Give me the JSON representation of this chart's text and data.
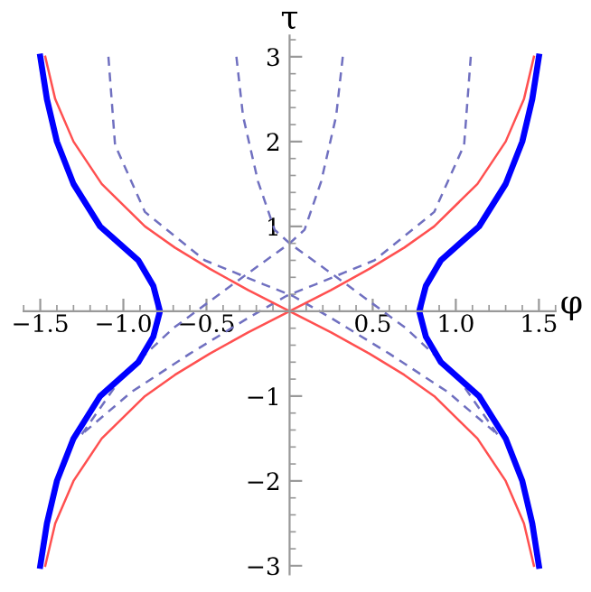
{
  "chart_data": {
    "type": "line",
    "xlabel": "φ",
    "ylabel": "τ",
    "grid": false,
    "legend": false,
    "xlim": [
      -1.6,
      1.6
    ],
    "ylim": [
      -3.1,
      3.25
    ],
    "xticks": [
      {
        "value": -1.5,
        "label": "−1.5"
      },
      {
        "value": -1.0,
        "label": "−1.0"
      },
      {
        "value": -0.5,
        "label": "−0.5"
      },
      0.5,
      {
        "value": 1.0,
        "label": "1.0"
      },
      1.5
    ],
    "yticks": [
      {
        "value": -3,
        "label": "−3"
      },
      {
        "value": -2,
        "label": "−2"
      },
      {
        "value": -1,
        "label": "−1"
      },
      1,
      2,
      3
    ],
    "series": [
      {
        "color": "#7070c0",
        "line_style": "dashed",
        "x": [
          1.09,
          1.05,
          0.87,
          0.51,
          0.16,
          -0.02,
          -0.25,
          -0.6,
          -0.95,
          -1.25
        ],
        "values": [
          3,
          1.96,
          1.17,
          0.6,
          0.32,
          0.18,
          -0.08,
          -0.5,
          -0.95,
          -1.45
        ]
      },
      {
        "color": "#7070c0",
        "line_style": "dashed",
        "x": [
          -1.09,
          -1.05,
          -0.87,
          -0.51,
          -0.16,
          0.02,
          0.25,
          0.6,
          0.95,
          1.25
        ],
        "values": [
          3,
          1.96,
          1.17,
          0.6,
          0.32,
          0.18,
          -0.08,
          -0.5,
          -0.95,
          -1.45
        ]
      },
      {
        "color": "#7070c0",
        "line_style": "dashed",
        "x": [
          0.32,
          0.28,
          0.19,
          0.09,
          0.0,
          -0.34,
          -0.7,
          -1.0,
          -1.25
        ],
        "values": [
          3,
          2.3,
          1.53,
          0.96,
          0.8,
          0.32,
          -0.2,
          -0.75,
          -1.45
        ]
      },
      {
        "color": "#7070c0",
        "line_style": "dashed",
        "x": [
          -0.32,
          -0.28,
          -0.19,
          -0.09,
          0.0,
          0.34,
          0.7,
          1.0,
          1.25
        ],
        "values": [
          3,
          2.3,
          1.53,
          0.96,
          0.8,
          0.32,
          -0.2,
          -0.75,
          -1.45
        ]
      },
      {
        "color": "#ff5050",
        "line_style": "solid",
        "x": [
          -1.47,
          -1.41,
          -1.3,
          -1.13,
          -0.87,
          -0.69,
          -0.48,
          -0.25,
          0,
          0.25,
          0.48,
          0.69,
          0.87,
          1.13,
          1.3,
          1.41,
          1.47
        ],
        "values": [
          -3,
          -2.5,
          -2,
          -1.5,
          -1,
          -0.75,
          -0.5,
          -0.25,
          0,
          0.25,
          0.5,
          0.75,
          1,
          1.5,
          2,
          2.5,
          3
        ]
      },
      {
        "color": "#ff5050",
        "line_style": "solid",
        "x": [
          1.47,
          1.41,
          1.3,
          1.13,
          0.87,
          0.69,
          0.48,
          0.25,
          0,
          -0.25,
          -0.48,
          -0.69,
          -0.87,
          -1.13,
          -1.3,
          -1.41,
          -1.47
        ],
        "values": [
          -3,
          -2.5,
          -2,
          -1.5,
          -1,
          -0.75,
          -0.5,
          -0.25,
          0,
          0.25,
          0.5,
          0.75,
          1,
          1.5,
          2,
          2.5,
          3
        ]
      },
      {
        "color": "#0000ff",
        "line_style": "solid",
        "x": [
          1.5,
          1.46,
          1.4,
          1.3,
          1.14,
          0.91,
          0.82,
          0.78,
          0.82,
          0.91,
          1.14,
          1.3,
          1.4,
          1.46,
          1.5
        ],
        "values": [
          -3,
          -2.5,
          -2,
          -1.5,
          -1,
          -0.6,
          -0.3,
          0,
          0.3,
          0.6,
          1,
          1.5,
          2,
          2.5,
          3
        ]
      },
      {
        "color": "#0000ff",
        "line_style": "solid",
        "x": [
          -1.5,
          -1.46,
          -1.4,
          -1.3,
          -1.14,
          -0.91,
          -0.82,
          -0.78,
          -0.82,
          -0.91,
          -1.14,
          -1.3,
          -1.4,
          -1.46,
          -1.5
        ],
        "values": [
          -3,
          -2.5,
          -2,
          -1.5,
          -1,
          -0.6,
          -0.3,
          0,
          0.3,
          0.6,
          1,
          1.5,
          2,
          2.5,
          3
        ]
      }
    ]
  }
}
